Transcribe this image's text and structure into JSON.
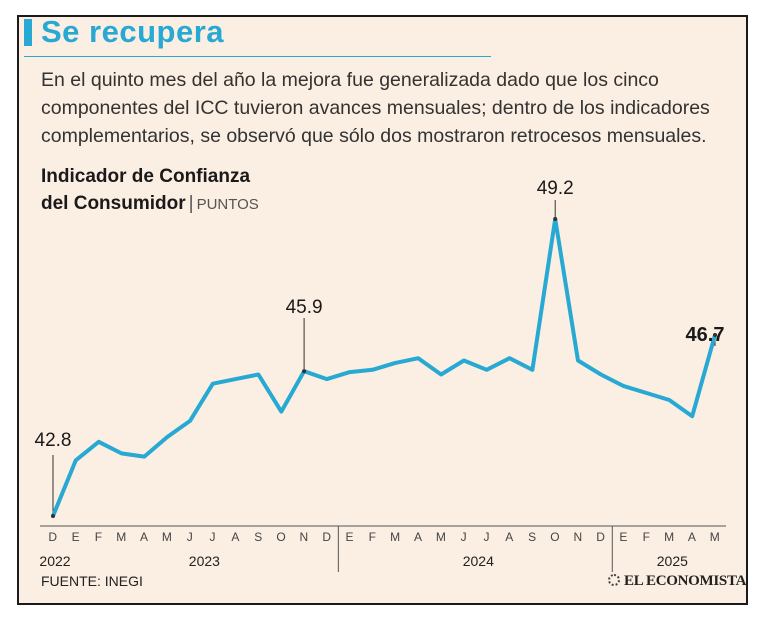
{
  "headline": "Se recupera",
  "description": "En el quinto mes del año la mejora fue generalizada dado que los cinco componentes del ICC tuvieron avances mensuales; dentro de los indicadores complementarios, se observó que sólo dos mostraron retrocesos mensuales.",
  "chart_title_line1": "Indicador de Confianza",
  "chart_title_line2": "del Consumidor",
  "chart_unit": "PUNTOS",
  "source": "FUENTE: INEGI",
  "brand": "EL ECONOMISTA",
  "colors": {
    "line": "#27a9d4",
    "background": "#fbeee2",
    "text": "#333333"
  },
  "chart_data": {
    "type": "line",
    "title": "Indicador de Confianza del Consumidor",
    "ylabel": "PUNTOS",
    "grid": false,
    "legend": "none",
    "x": [
      "D",
      "E",
      "F",
      "M",
      "A",
      "M",
      "J",
      "J",
      "A",
      "S",
      "O",
      "N",
      "D",
      "E",
      "F",
      "M",
      "A",
      "M",
      "J",
      "J",
      "A",
      "S",
      "O",
      "N",
      "D",
      "E",
      "F",
      "M",
      "A",
      "M"
    ],
    "year_labels": [
      "2022",
      "2023",
      "2024",
      "2025"
    ],
    "series": [
      {
        "values": [
          42.8,
          44.0,
          44.4,
          44.15,
          44.08,
          44.5,
          44.85,
          45.65,
          45.75,
          45.85,
          45.05,
          45.92,
          45.75,
          45.9,
          45.95,
          46.1,
          46.2,
          45.85,
          46.15,
          45.95,
          46.2,
          45.95,
          49.2,
          46.15,
          45.85,
          45.6,
          45.45,
          45.3,
          44.95,
          46.7
        ]
      }
    ],
    "annotations": [
      {
        "index": 0,
        "label": "42.8"
      },
      {
        "index": 11,
        "label": "45.9"
      },
      {
        "index": 22,
        "label": "49.2"
      },
      {
        "index": 29,
        "label": "46.7"
      }
    ]
  }
}
